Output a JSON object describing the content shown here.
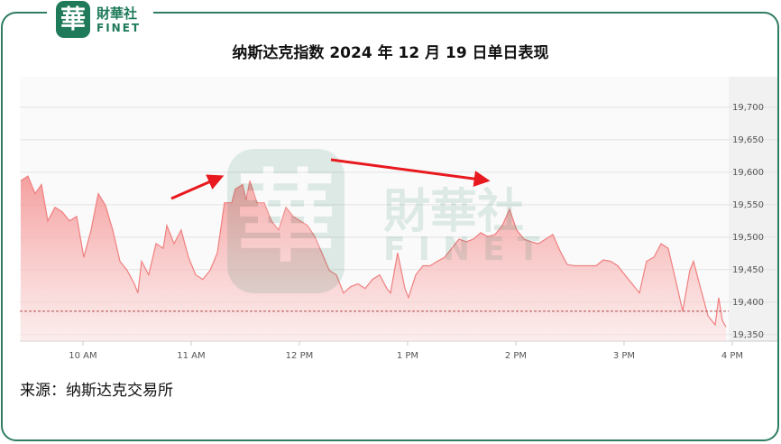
{
  "logo": {
    "name": "財華社",
    "brand": "FINET"
  },
  "chart_data": {
    "type": "area",
    "title": "纳斯达克指数 2024 年 12 月 19 日单日表现",
    "source": "来源：纳斯达克交易所",
    "x": [
      9.425,
      9.492,
      9.558,
      9.617,
      9.675,
      9.742,
      9.808,
      9.875,
      9.942,
      10.008,
      10.075,
      10.142,
      10.208,
      10.275,
      10.342,
      10.408,
      10.475,
      10.508,
      10.542,
      10.608,
      10.675,
      10.742,
      10.775,
      10.842,
      10.908,
      10.975,
      11.042,
      11.108,
      11.175,
      11.242,
      11.308,
      11.375,
      11.408,
      11.475,
      11.508,
      11.542,
      11.608,
      11.675,
      11.742,
      11.808,
      11.875,
      11.942,
      12.008,
      12.075,
      12.142,
      12.208,
      12.275,
      12.342,
      12.408,
      12.475,
      12.542,
      12.608,
      12.675,
      12.742,
      12.808,
      12.842,
      12.908,
      12.975,
      13.008,
      13.075,
      13.142,
      13.208,
      13.275,
      13.342,
      13.408,
      13.475,
      13.542,
      13.608,
      13.675,
      13.742,
      13.808,
      13.875,
      13.942,
      14.008,
      14.075,
      14.142,
      14.208,
      14.275,
      14.342,
      14.408,
      14.475,
      14.542,
      14.608,
      14.675,
      14.742,
      14.808,
      14.875,
      14.942,
      15.008,
      15.075,
      15.142,
      15.208,
      15.275,
      15.342,
      15.408,
      15.475,
      15.542,
      15.608,
      15.642,
      15.708,
      15.775,
      15.842,
      15.875,
      15.908,
      15.942
    ],
    "series": [
      {
        "color": "#f07f7f",
        "values": [
          19587,
          19594,
          19567,
          19581,
          19525,
          19546,
          19539,
          19525,
          19532,
          19469,
          19511,
          19567,
          19549,
          19511,
          19463,
          19449,
          19428,
          19414,
          19463,
          19442,
          19490,
          19483,
          19518,
          19490,
          19511,
          19469,
          19442,
          19435,
          19449,
          19476,
          19553,
          19553,
          19574,
          19581,
          19557,
          19587,
          19553,
          19553,
          19525,
          19511,
          19546,
          19532,
          19525,
          19518,
          19501,
          19476,
          19449,
          19442,
          19414,
          19424,
          19428,
          19421,
          19435,
          19442,
          19421,
          19414,
          19476,
          19421,
          19407,
          19442,
          19456,
          19456,
          19463,
          19469,
          19483,
          19497,
          19493,
          19497,
          19507,
          19501,
          19504,
          19518,
          19543,
          19511,
          19497,
          19493,
          19490,
          19497,
          19504,
          19479,
          19458,
          19456,
          19456,
          19456,
          19456,
          19465,
          19463,
          19456,
          19442,
          19428,
          19414,
          19463,
          19469,
          19490,
          19483,
          19435,
          19386,
          19449,
          19463,
          19421,
          19379,
          19365,
          19407,
          19372,
          19362
        ]
      }
    ],
    "reference_value": 19386,
    "xlim": [
      9.417,
      15.967
    ],
    "xticks": [
      {
        "value": 10,
        "label": "10 AM"
      },
      {
        "value": 11,
        "label": "11 AM"
      },
      {
        "value": 12,
        "label": "12 PM"
      },
      {
        "value": 13,
        "label": "1 PM"
      },
      {
        "value": 14,
        "label": "2 PM"
      },
      {
        "value": 15,
        "label": "3 PM"
      },
      {
        "value": 16,
        "label": "4 PM"
      }
    ],
    "ylim": [
      19340,
      19747
    ],
    "yticks": [
      {
        "value": 19350,
        "label": "19,350"
      },
      {
        "value": 19400,
        "label": "19,400"
      },
      {
        "value": 19450,
        "label": "19,450"
      },
      {
        "value": 19500,
        "label": "19,500"
      },
      {
        "value": 19550,
        "label": "19,550"
      },
      {
        "value": 19600,
        "label": "19,600"
      },
      {
        "value": 19650,
        "label": "19,650"
      },
      {
        "value": 19700,
        "label": "19,700"
      }
    ],
    "grid": true
  }
}
